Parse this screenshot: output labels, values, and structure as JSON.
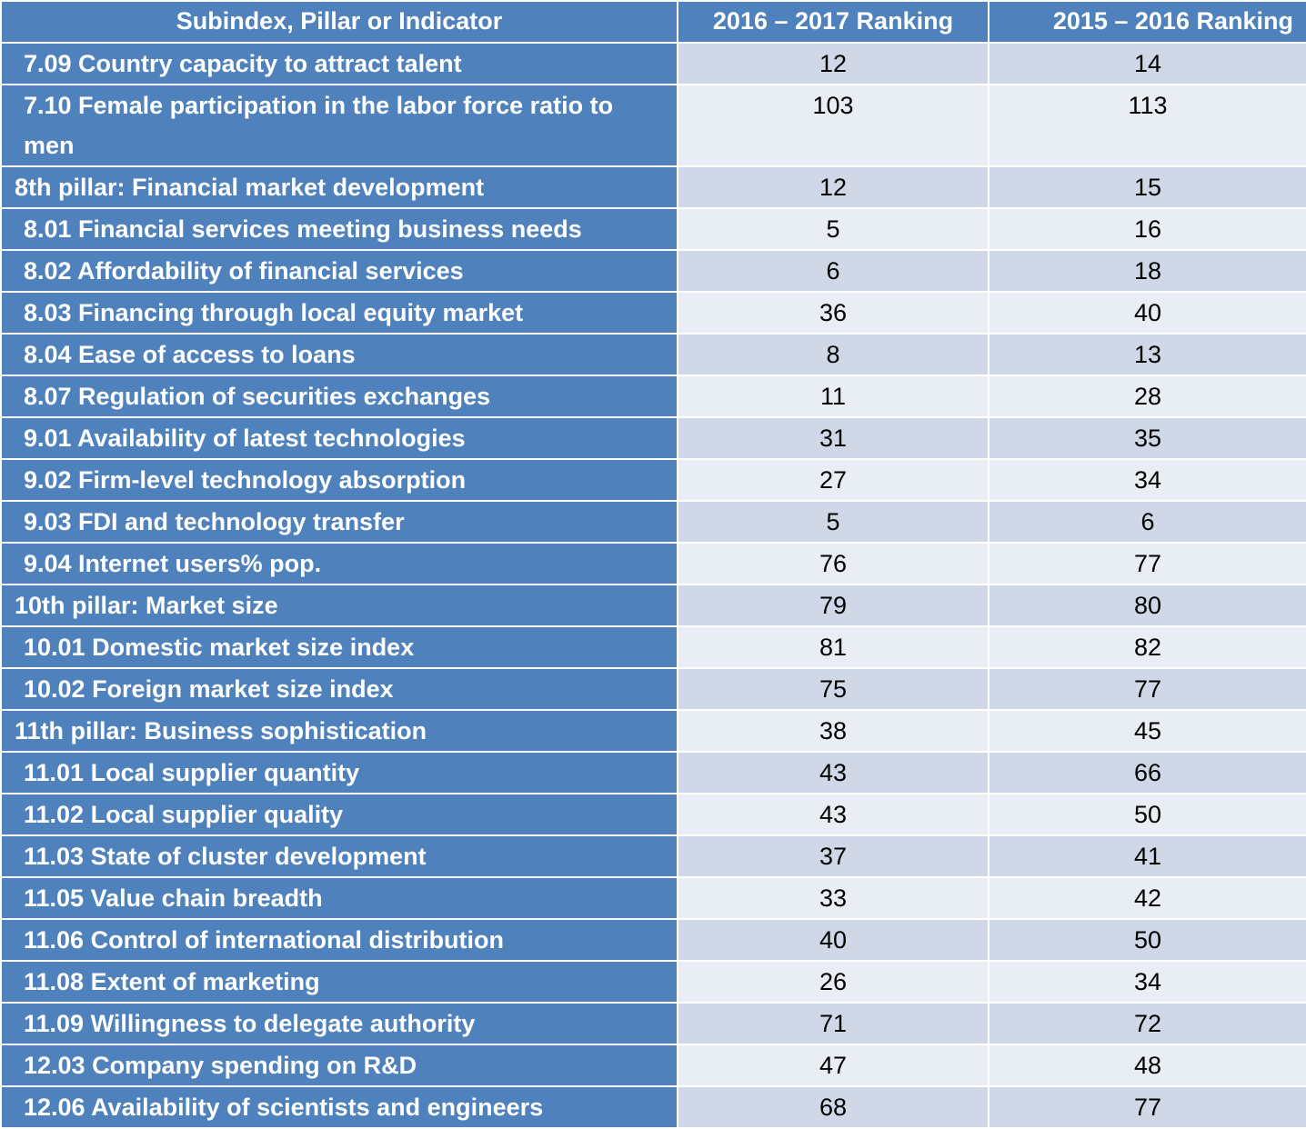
{
  "headers": [
    "Subindex, Pillar or Indicator",
    "2016 – 2017 Ranking",
    "2015 – 2016 Ranking"
  ],
  "rows": [
    {
      "label": "7.09 Country capacity to attract talent",
      "r2017": "12",
      "r2016": "14",
      "pillar": false
    },
    {
      "label": "7.10 Female participation in the labor force ratio to men",
      "r2017": "103",
      "r2016": "113",
      "pillar": false
    },
    {
      "label": "8th pillar: Financial market development",
      "r2017": "12",
      "r2016": "15",
      "pillar": true
    },
    {
      "label": "8.01 Financial services meeting business needs",
      "r2017": "5",
      "r2016": "16",
      "pillar": false
    },
    {
      "label": "8.02 Affordability of financial services",
      "r2017": "6",
      "r2016": "18",
      "pillar": false
    },
    {
      "label": "8.03 Financing through local equity market",
      "r2017": "36",
      "r2016": "40",
      "pillar": false
    },
    {
      "label": "8.04 Ease of access to loans",
      "r2017": "8",
      "r2016": "13",
      "pillar": false
    },
    {
      "label": "8.07 Regulation of securities exchanges",
      "r2017": "11",
      "r2016": "28",
      "pillar": false
    },
    {
      "label": "9.01 Availability of latest technologies",
      "r2017": "31",
      "r2016": "35",
      "pillar": false
    },
    {
      "label": "9.02 Firm-level technology absorption",
      "r2017": "27",
      "r2016": "34",
      "pillar": false
    },
    {
      "label": "9.03 FDI and technology transfer",
      "r2017": "5",
      "r2016": "6",
      "pillar": false
    },
    {
      "label": "9.04 Internet users% pop.",
      "r2017": "76",
      "r2016": "77",
      "pillar": false
    },
    {
      "label": "10th pillar: Market size",
      "r2017": "79",
      "r2016": "80",
      "pillar": true
    },
    {
      "label": "10.01 Domestic market size index",
      "r2017": "81",
      "r2016": "82",
      "pillar": false
    },
    {
      "label": "10.02 Foreign market size index",
      "r2017": "75",
      "r2016": "77",
      "pillar": false
    },
    {
      "label": "11th pillar: Business sophistication",
      "r2017": "38",
      "r2016": "45",
      "pillar": true
    },
    {
      "label": "11.01 Local supplier quantity",
      "r2017": "43",
      "r2016": "66",
      "pillar": false
    },
    {
      "label": "11.02 Local supplier quality",
      "r2017": "43",
      "r2016": "50",
      "pillar": false
    },
    {
      "label": "11.03 State of cluster development",
      "r2017": "37",
      "r2016": "41",
      "pillar": false
    },
    {
      "label": "11.05 Value chain breadth",
      "r2017": "33",
      "r2016": "42",
      "pillar": false
    },
    {
      "label": "11.06 Control of international distribution",
      "r2017": "40",
      "r2016": "50",
      "pillar": false
    },
    {
      "label": "11.08 Extent of marketing",
      "r2017": "26",
      "r2016": "34",
      "pillar": false
    },
    {
      "label": "11.09 Willingness to delegate authority",
      "r2017": "71",
      "r2016": "72",
      "pillar": false
    },
    {
      "label": "12.03 Company spending on R&D",
      "r2017": "47",
      "r2016": "48",
      "pillar": false
    },
    {
      "label": "12.06 Availability of scientists and engineers",
      "r2017": "68",
      "r2016": "77",
      "pillar": false
    }
  ],
  "colors": {
    "header_bg": "#4f81bd",
    "row_odd": "#d0d8e8",
    "row_even": "#e9edf4"
  }
}
